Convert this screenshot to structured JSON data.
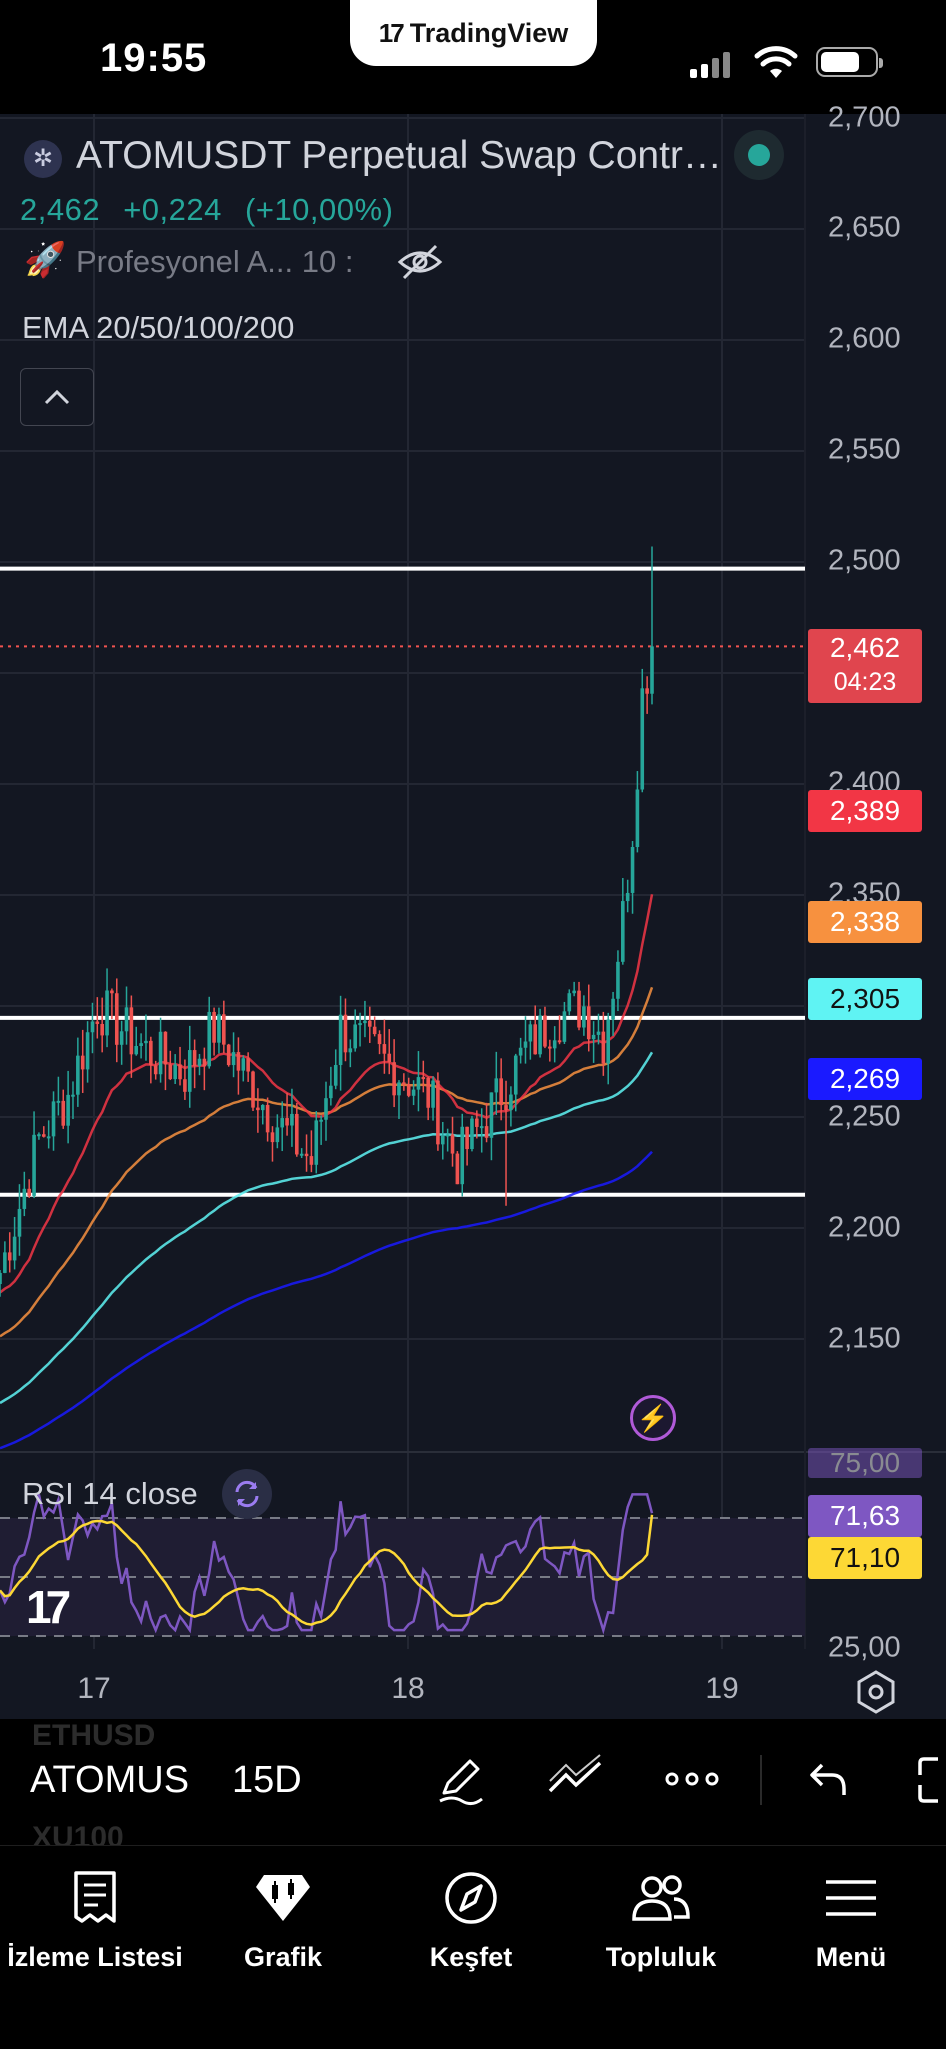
{
  "status_bar": {
    "time": "19:55",
    "center_pill": "TradingView"
  },
  "header": {
    "symbol_title": "ATOMUSDT Perpetual Swap Contr…",
    "last_price": "2,462",
    "change": "+0,224",
    "change_pct": "(+10,00%)",
    "indicator_name": "Profesyonel A... 10 :",
    "ema_label": "EMA 20/50/100/200"
  },
  "rsi": {
    "label": "RSI 14 close",
    "value_label": "71,63",
    "ma_label": "71,10",
    "ghost_label": "75,00"
  },
  "price_axis": {
    "ticks": [
      "2,700",
      "2,650",
      "2,600",
      "2,550",
      "2,500",
      "2,400",
      "2,350",
      "2,250",
      "2,200",
      "2,150",
      "25,00"
    ]
  },
  "time_axis": {
    "ticks": [
      "17",
      "18",
      "19"
    ]
  },
  "price_labels": {
    "last": {
      "price": "2,462",
      "countdown": "04:23",
      "color": "#f05350"
    },
    "ema20": {
      "value": "2,389",
      "color": "#f23645"
    },
    "ema50": {
      "value": "2,338",
      "color": "#f7913f"
    },
    "ema100": {
      "value": "2,305",
      "color": "#5ff3f3"
    },
    "ema200": {
      "value": "2,269",
      "color": "#1a1aff"
    }
  },
  "chart_data": {
    "type": "candlestick",
    "interval": "15D",
    "x_ticks": [
      "17",
      "18",
      "19"
    ],
    "ylim": [
      2.12,
      2.71
    ],
    "horizontal_levels": [
      2.497,
      2.305,
      2.215
    ],
    "last_price": 2.462,
    "ema_last": {
      "ema20": 2.389,
      "ema50": 2.338,
      "ema100": 2.305,
      "ema200": 2.269
    },
    "rsi": {
      "length": 14,
      "source": "close",
      "last": 71.63,
      "ma_last": 71.1,
      "bands": [
        70,
        50,
        30
      ]
    }
  },
  "toolbar": {
    "symbol": "ATOMUSDT",
    "interval": "15D",
    "ghost_top": "ETHUSD",
    "ghost_bottom": "XU100"
  },
  "tabs": [
    {
      "label": "İzleme Listesi"
    },
    {
      "label": "Grafik"
    },
    {
      "label": "Keşfet"
    },
    {
      "label": "Topluluk"
    },
    {
      "label": "Menü"
    }
  ]
}
